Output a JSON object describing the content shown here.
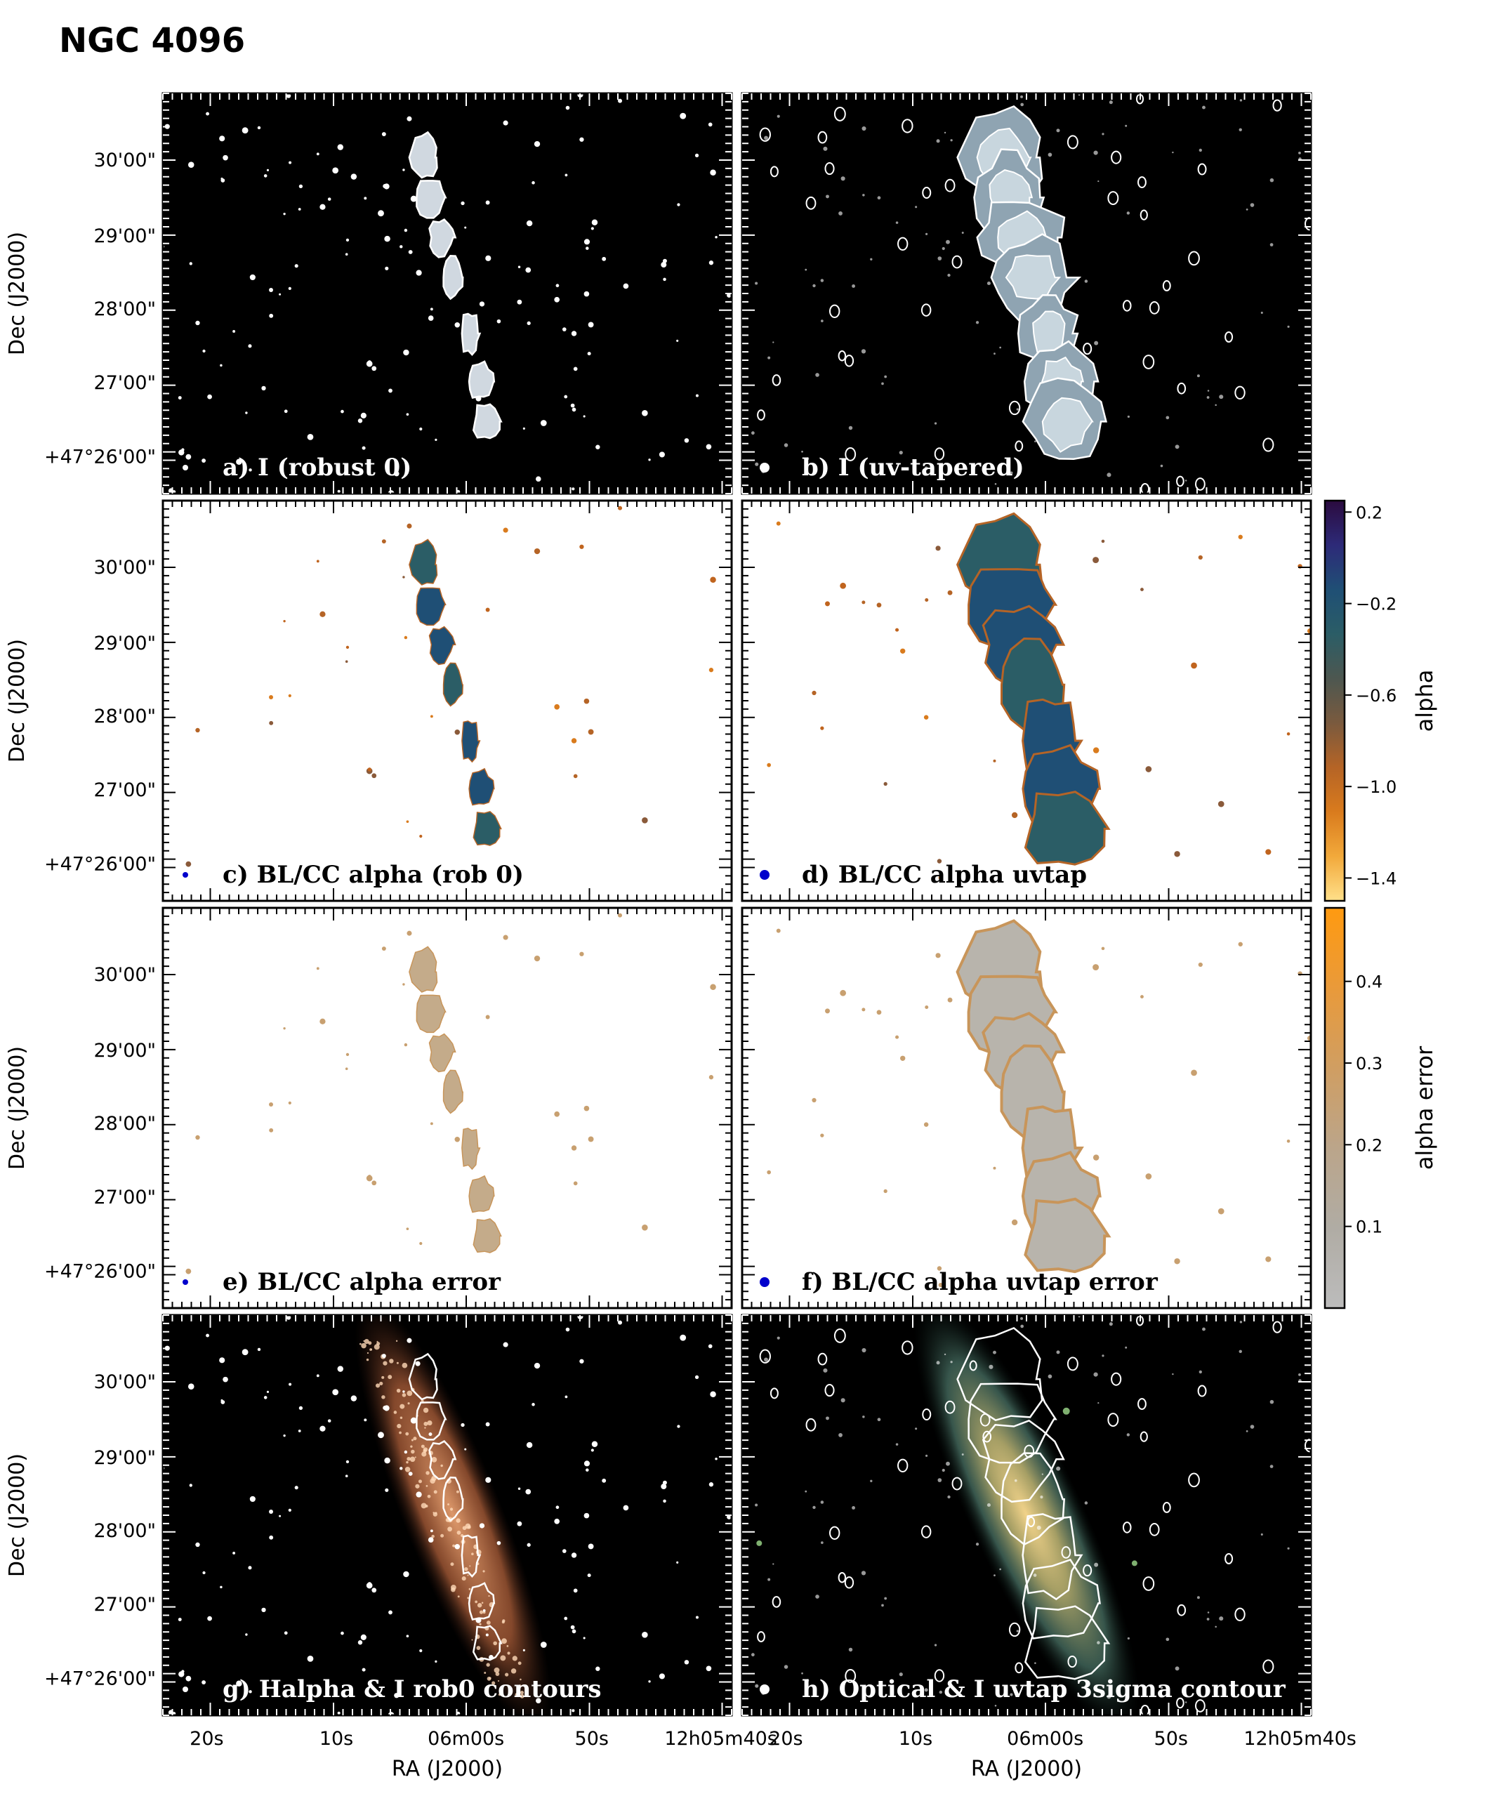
{
  "figure_title": "NGC 4096",
  "axes": {
    "x_label": "RA (J2000)",
    "y_label": "Dec (J2000)",
    "x_ticks": [
      "20s",
      "10s",
      "06m00s",
      "50s",
      "12h05m40s"
    ],
    "y_ticks": [
      "30'00\"",
      "29'00\"",
      "28'00\"",
      "27'00\"",
      "+47°26'00\""
    ]
  },
  "panels": [
    {
      "id": "a",
      "label": "a) I (robust 0)",
      "background": "#000000",
      "label_color": "#ffffff",
      "beam_color": "#ffffff",
      "type": "intensity-robust"
    },
    {
      "id": "b",
      "label": "b) I (uv-tapered)",
      "background": "#000000",
      "label_color": "#ffffff",
      "beam_color": "#ffffff",
      "type": "intensity-uvtap"
    },
    {
      "id": "c",
      "label": "c) BL/CC alpha (rob 0)",
      "background": "#ffffff",
      "label_color": "#000000",
      "beam_color": "#0000cc",
      "type": "alpha-robust"
    },
    {
      "id": "d",
      "label": "d) BL/CC alpha uvtap",
      "background": "#ffffff",
      "label_color": "#000000",
      "beam_color": "#0000cc",
      "type": "alpha-uvtap"
    },
    {
      "id": "e",
      "label": "e)  BL/CC alpha error",
      "background": "#ffffff",
      "label_color": "#000000",
      "beam_color": "#0000cc",
      "type": "error-robust"
    },
    {
      "id": "f",
      "label": "f) BL/CC alpha uvtap error",
      "background": "#ffffff",
      "label_color": "#000000",
      "beam_color": "#0000cc",
      "type": "error-uvtap"
    },
    {
      "id": "g",
      "label": "g) Halpha & I rob0 contours",
      "background": "#000000",
      "label_color": "#ffffff",
      "beam_color": "#ffffff",
      "type": "halpha"
    },
    {
      "id": "h",
      "label": "h) Optical & I uvtap 3sigma contour",
      "background": "#000000",
      "label_color": "#ffffff",
      "beam_color": "#ffffff",
      "type": "optical"
    }
  ],
  "colorbars": [
    {
      "id": "alpha",
      "label": "alpha",
      "ticks": [
        "0.2",
        "−0.2",
        "−0.6",
        "−1.0",
        "−1.4"
      ],
      "tick_values": [
        0.2,
        -0.2,
        -0.6,
        -1.0,
        -1.4
      ],
      "range": [
        0.25,
        -1.5
      ],
      "stops": [
        "#2b0b3f",
        "#2d2a78",
        "#1f4f75",
        "#2b5d66",
        "#4d5750",
        "#7a5a3e",
        "#b56426",
        "#d97b1d",
        "#f2a93b",
        "#ffe08a"
      ]
    },
    {
      "id": "alpha_error",
      "label": "alpha error",
      "ticks": [
        "0.4",
        "0.3",
        "0.2",
        "0.1"
      ],
      "tick_values": [
        0.4,
        0.3,
        0.2,
        0.1
      ],
      "range": [
        0.49,
        0.0
      ],
      "stops": [
        "#ff9a10",
        "#e99a3a",
        "#d09e62",
        "#bba58a",
        "#b0aca4",
        "#bcbcbc"
      ]
    }
  ]
}
